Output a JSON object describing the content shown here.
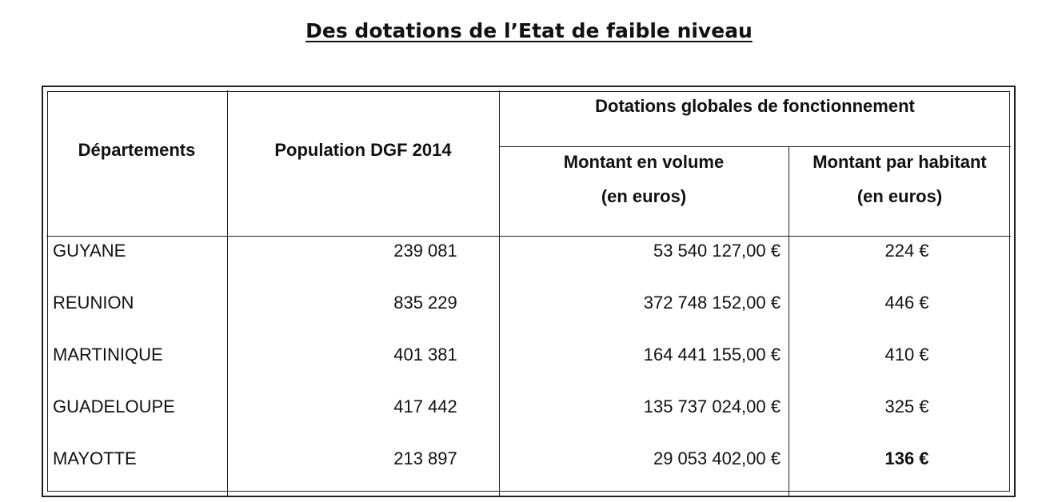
{
  "title": "Des dotations de l’Etat de faible niveau",
  "table": {
    "headers": {
      "departements": "Départements",
      "population": "Population DGF 2014",
      "dotations": "Dotations globales de fonctionnement",
      "volume_line1": "Montant en volume",
      "volume_line2": "(en euros)",
      "habitant_line1": "Montant par habitant",
      "habitant_line2": "(en euros)"
    },
    "rows": [
      {
        "departement": "GUYANE",
        "population": "239 081",
        "volume": "53 540 127,00 €",
        "habitant": "224 €"
      },
      {
        "departement": "REUNION",
        "population": "835 229",
        "volume": "372 748 152,00 €",
        "habitant": "446 €"
      },
      {
        "departement": "MARTINIQUE",
        "population": "401 381",
        "volume": "164 441 155,00 €",
        "habitant": "410 €"
      },
      {
        "departement": "GUADELOUPE",
        "population": "417 442",
        "volume": "135 737 024,00 €",
        "habitant": "325 €"
      },
      {
        "departement": "MAYOTTE",
        "population": "213 897",
        "volume": "29 053 402,00 €",
        "habitant": "136 €"
      }
    ]
  }
}
